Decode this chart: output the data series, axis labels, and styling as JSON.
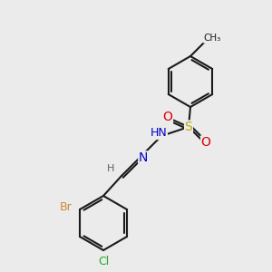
{
  "background_color": "#ebebeb",
  "bond_color": "#1a1a1a",
  "bond_lw": 1.5,
  "atom_colors": {
    "N": "#0000cc",
    "O": "#dd0000",
    "S": "#bbaa00",
    "Br": "#cc8833",
    "Cl": "#22aa22",
    "C": "#1a1a1a",
    "H": "#606060"
  },
  "font_size": 9,
  "font_size_small": 8
}
